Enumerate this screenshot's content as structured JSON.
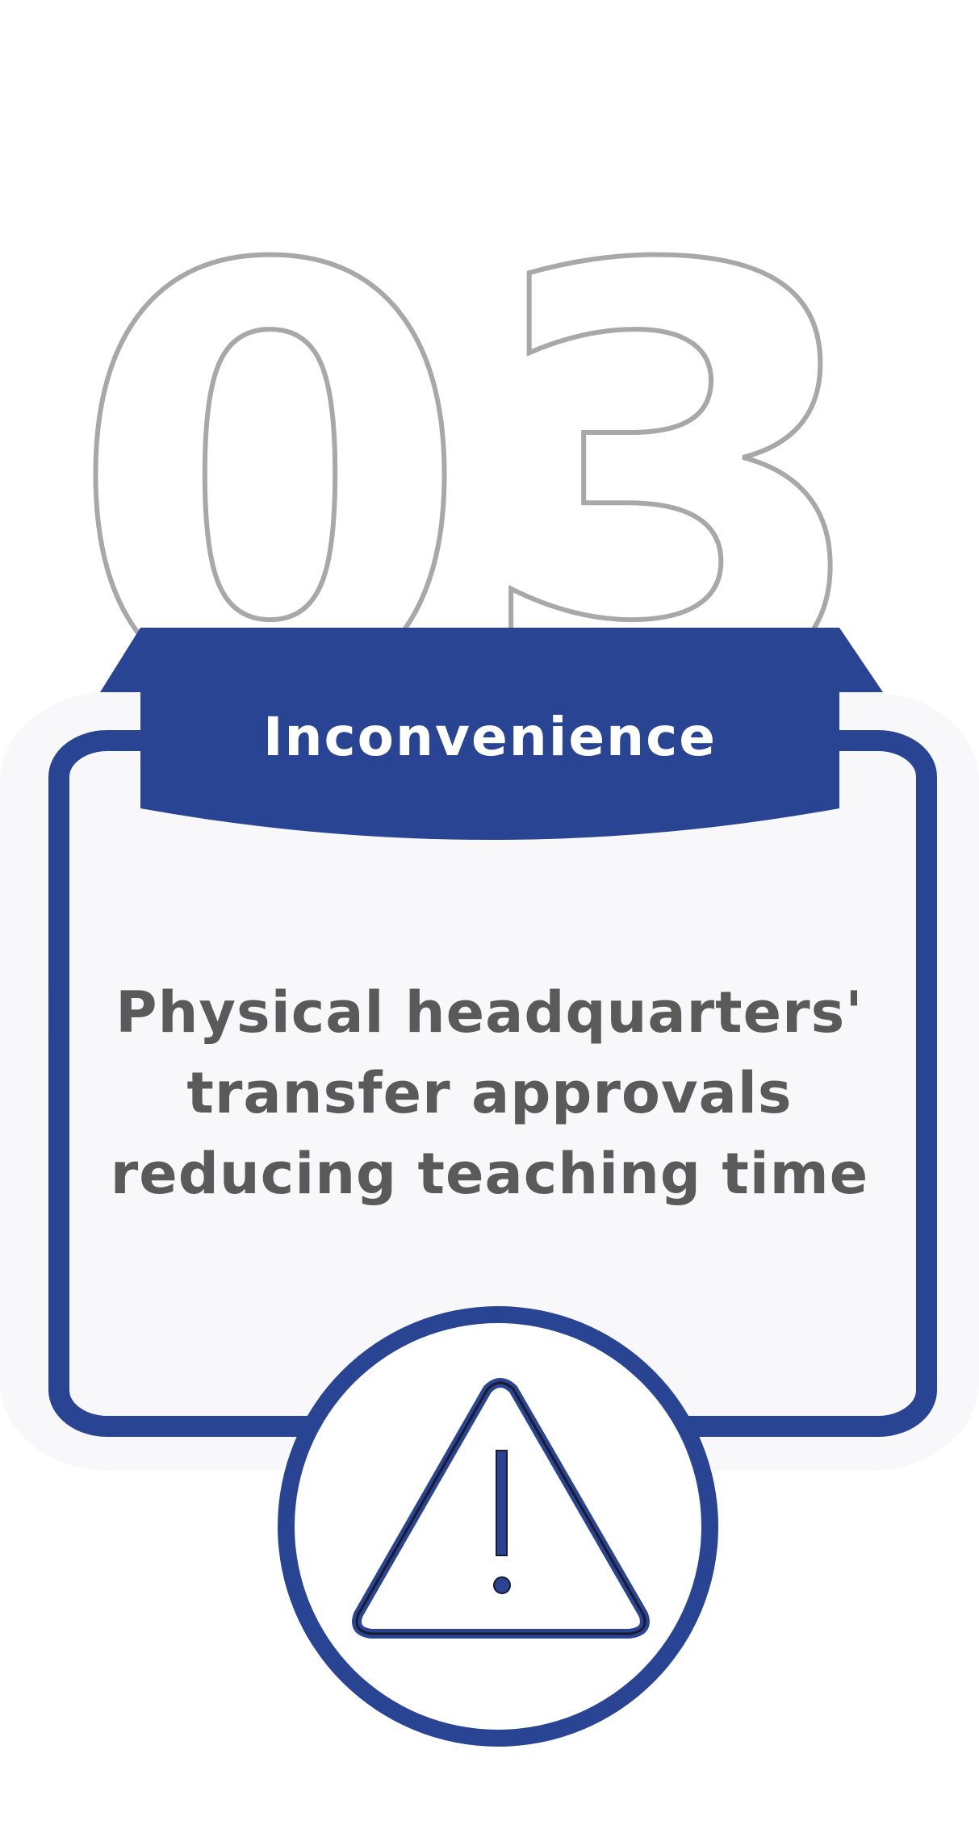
{
  "number": "03",
  "title": "Inconvenience",
  "description": "Physical headquarters' transfer approvals reducing teaching time",
  "icon": "warning-triangle-icon",
  "colors": {
    "accent": "#2a4494",
    "outline": "#a8a8a8",
    "card_bg": "#f8f8fb",
    "text": "#5a5a5a",
    "white": "#ffffff"
  }
}
